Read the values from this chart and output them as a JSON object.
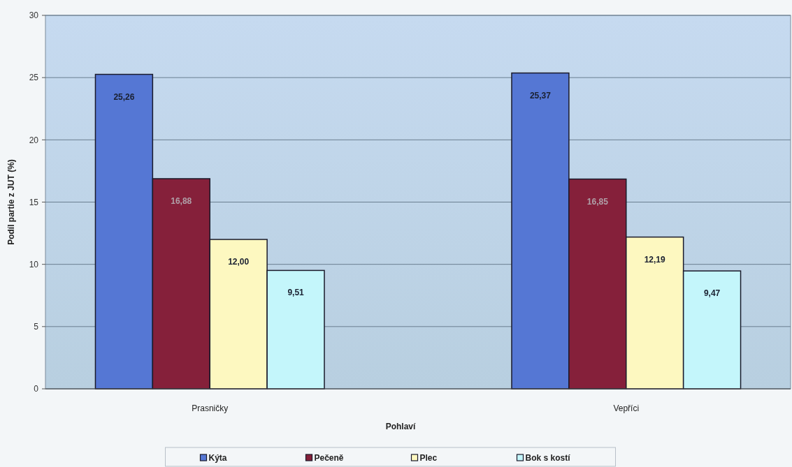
{
  "chart_data": {
    "type": "bar",
    "xlabel": "Pohlaví",
    "ylabel": "Podíl partie z JUT (%)",
    "categories": [
      "Prasničky",
      "Vepříci"
    ],
    "series": [
      {
        "name": "Kýta",
        "color": "#5577d4",
        "values": [
          25.26,
          25.37
        ],
        "value_labels": [
          "25,26",
          "25,37"
        ]
      },
      {
        "name": "Pečeně",
        "color": "#85203a",
        "values": [
          16.88,
          16.85
        ],
        "value_labels": [
          "16,88",
          "16,85"
        ]
      },
      {
        "name": "Plec",
        "color": "#fdf8c0",
        "values": [
          12.0,
          12.19
        ],
        "value_labels": [
          "12,00",
          "12,19"
        ]
      },
      {
        "name": "Bok s kostí",
        "color": "#c4f6fb",
        "values": [
          9.51,
          9.47
        ],
        "value_labels": [
          "9,51",
          "9,47"
        ]
      }
    ],
    "ylim": [
      0,
      30
    ],
    "yticks": [
      0,
      5,
      10,
      15,
      20,
      25,
      30
    ],
    "grid": "y",
    "legend": "bottom"
  }
}
